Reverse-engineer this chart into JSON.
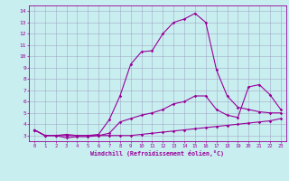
{
  "xlabel": "Windchill (Refroidissement éolien,°C)",
  "bg_color": "#c8eef0",
  "line_color": "#990099",
  "grid_color": "#9999bb",
  "xlim": [
    -0.5,
    23.5
  ],
  "ylim": [
    2.5,
    14.5
  ],
  "xticks": [
    0,
    1,
    2,
    3,
    4,
    5,
    6,
    7,
    8,
    9,
    10,
    11,
    12,
    13,
    14,
    15,
    16,
    17,
    18,
    19,
    20,
    21,
    22,
    23
  ],
  "yticks": [
    3,
    4,
    5,
    6,
    7,
    8,
    9,
    10,
    11,
    12,
    13,
    14
  ],
  "series1_x": [
    0,
    1,
    2,
    3,
    4,
    5,
    6,
    7,
    8,
    9,
    10,
    11,
    12,
    13,
    14,
    15,
    16,
    17,
    18,
    19,
    20,
    21,
    22,
    23
  ],
  "series1_y": [
    3.5,
    3.0,
    3.0,
    2.8,
    2.9,
    2.9,
    3.0,
    3.0,
    3.0,
    3.0,
    3.1,
    3.2,
    3.3,
    3.4,
    3.5,
    3.6,
    3.7,
    3.8,
    3.9,
    4.0,
    4.1,
    4.2,
    4.3,
    4.5
  ],
  "series2_x": [
    0,
    1,
    2,
    3,
    4,
    5,
    6,
    7,
    8,
    9,
    10,
    11,
    12,
    13,
    14,
    15,
    16,
    17,
    18,
    19,
    20,
    21,
    22,
    23
  ],
  "series2_y": [
    3.5,
    3.0,
    3.0,
    3.0,
    3.0,
    3.0,
    3.1,
    4.4,
    6.5,
    9.3,
    10.4,
    10.5,
    12.0,
    13.0,
    13.3,
    13.8,
    13.0,
    8.8,
    6.5,
    5.5,
    5.3,
    5.1,
    5.0,
    5.0
  ],
  "series3_x": [
    0,
    1,
    2,
    3,
    4,
    5,
    6,
    7,
    8,
    9,
    10,
    11,
    12,
    13,
    14,
    15,
    16,
    17,
    18,
    19,
    20,
    21,
    22,
    23
  ],
  "series3_y": [
    3.5,
    3.0,
    3.0,
    3.1,
    3.0,
    3.0,
    3.0,
    3.2,
    4.2,
    4.5,
    4.8,
    5.0,
    5.3,
    5.8,
    6.0,
    6.5,
    6.5,
    5.3,
    4.8,
    4.6,
    7.3,
    7.5,
    6.6,
    5.3
  ]
}
